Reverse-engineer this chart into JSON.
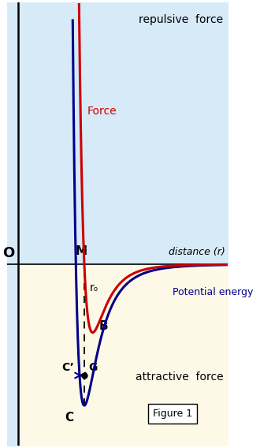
{
  "background_top": "#d6eaf8",
  "background_bottom": "#fef9e7",
  "force_color": "#cc0000",
  "potential_color": "#00008b",
  "arrow_color": "#00008b",
  "label_force": "Force",
  "label_potential": "Potential energy",
  "label_repulsive": "repulsive  force",
  "label_attractive": "attractive  force",
  "label_distance": "distance (r)",
  "label_O": "O",
  "label_M": "M",
  "label_ro": "rₒ",
  "label_B": "B",
  "label_C": "C",
  "label_Cprime": "C’",
  "label_G": "G",
  "label_figure": "Figure 1",
  "figsize": [
    3.3,
    5.68
  ],
  "dpi": 100,
  "x_min": 0.0,
  "x_max": 10.0,
  "y_min": -4.5,
  "y_max": 6.5,
  "yaxis_x": 0.5,
  "r0": 3.5,
  "eps_pe": 3.5,
  "eps_f": 2.2
}
